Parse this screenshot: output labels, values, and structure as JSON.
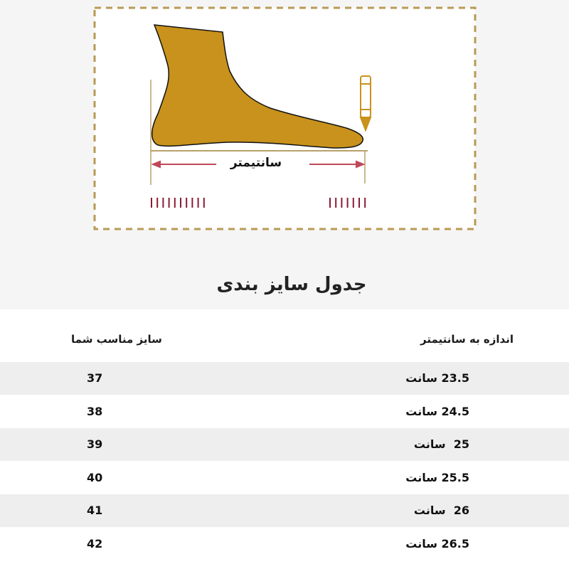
{
  "illustration": {
    "measure_label": "سانتیمتر",
    "colors": {
      "foot": "#c8921c",
      "frame": "#b99a55",
      "arrow": "#c0485a",
      "ticks": "#8a1a33"
    },
    "icons": [
      "foot-icon",
      "pencil-icon"
    ]
  },
  "title": "جدول سایز بندی",
  "table": {
    "headers": {
      "size": "سایز مناسب شما",
      "length": "اندازه به سانتیمتر"
    },
    "rows": [
      {
        "size": "37",
        "length": "23.5 سانت"
      },
      {
        "size": "38",
        "length": "24.5 سانت"
      },
      {
        "size": "39",
        "length": "25  سانت"
      },
      {
        "size": "40",
        "length": "25.5 سانت"
      },
      {
        "size": "41",
        "length": "26  سانت"
      },
      {
        "size": "42",
        "length": "26.5 سانت"
      }
    ]
  }
}
